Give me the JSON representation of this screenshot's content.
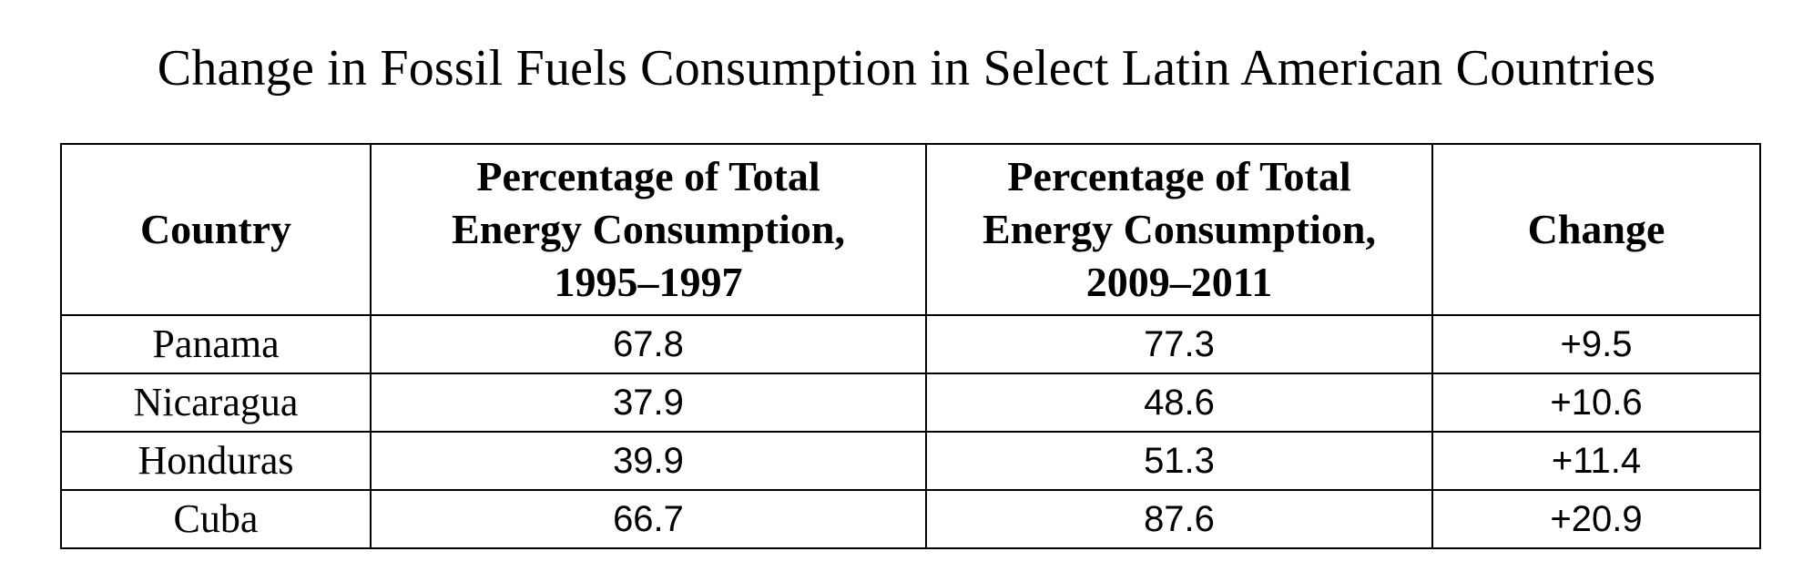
{
  "chart_data": {
    "type": "table",
    "title": "Change in Fossil Fuels Consumption in Select Latin American Countries",
    "columns": [
      "Country",
      "Percentage of Total Energy Consumption, 1995–1997",
      "Percentage of Total Energy Consumption, 2009–2011",
      "Change"
    ],
    "column_lines": [
      [
        "Country"
      ],
      [
        "Percentage of Total",
        "Energy Consumption,",
        "1995–1997"
      ],
      [
        "Percentage of Total",
        "Energy Consumption,",
        "2009–2011"
      ],
      [
        "Change"
      ]
    ],
    "rows": [
      [
        "Panama",
        "67.8",
        "77.3",
        "+9.5"
      ],
      [
        "Nicaragua",
        "37.9",
        "48.6",
        "+10.6"
      ],
      [
        "Honduras",
        "39.9",
        "51.3",
        "+11.4"
      ],
      [
        "Cuba",
        "66.7",
        "87.6",
        "+20.9"
      ]
    ]
  }
}
